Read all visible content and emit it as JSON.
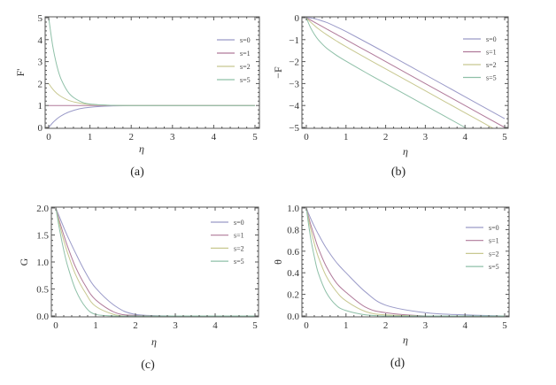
{
  "chart_data": [
    {
      "id": "a",
      "type": "line",
      "panel_label": "(a)",
      "xlabel": "η",
      "ylabel": "F'",
      "xlim": [
        0,
        5
      ],
      "ylim": [
        0,
        5
      ],
      "xticks": [
        "0",
        "1",
        "2",
        "3",
        "4",
        "5"
      ],
      "yticks": [
        "0",
        "1",
        "2",
        "3",
        "4",
        "5"
      ],
      "legend": "top-right",
      "x": [
        0,
        0.1,
        0.2,
        0.3,
        0.5,
        0.75,
        1,
        1.5,
        2,
        3,
        4,
        5
      ],
      "series": [
        {
          "name": "s=0",
          "color": "#9a9ac8",
          "values": [
            0,
            0.22,
            0.39,
            0.53,
            0.71,
            0.85,
            0.92,
            0.98,
            0.99,
            1,
            1,
            1
          ]
        },
        {
          "name": "s=1",
          "color": "#b07a9a",
          "values": [
            1,
            1,
            1,
            1,
            1,
            1,
            1,
            1,
            1,
            1,
            1,
            1
          ]
        },
        {
          "name": "s=2",
          "color": "#c8c890",
          "values": [
            2,
            1.74,
            1.55,
            1.41,
            1.22,
            1.11,
            1.05,
            1.01,
            1,
            1,
            1,
            1
          ]
        },
        {
          "name": "s=5",
          "color": "#8fc0a8",
          "values": [
            5,
            3.68,
            2.8,
            2.2,
            1.54,
            1.2,
            1.07,
            1.01,
            1,
            1,
            1,
            1
          ]
        }
      ]
    },
    {
      "id": "b",
      "type": "line",
      "panel_label": "(b)",
      "xlabel": "η",
      "ylabel": "−F",
      "xlim": [
        0,
        5
      ],
      "ylim": [
        -5,
        0
      ],
      "xticks": [
        "0",
        "1",
        "2",
        "3",
        "4",
        "5"
      ],
      "yticks": [
        "−5",
        "−4",
        "−3",
        "−2",
        "−1",
        "0"
      ],
      "legend": "top-right",
      "x": [
        0,
        0.1,
        0.2,
        0.3,
        0.5,
        0.75,
        1,
        1.5,
        2,
        3,
        4,
        5
      ],
      "series": [
        {
          "name": "s=0",
          "color": "#9a9ac8",
          "values": [
            0,
            -0.01,
            -0.04,
            -0.09,
            -0.21,
            -0.41,
            -0.63,
            -1.11,
            -1.6,
            -2.6,
            -3.6,
            -4.6
          ]
        },
        {
          "name": "s=1",
          "color": "#b07a9a",
          "values": [
            0,
            -0.1,
            -0.2,
            -0.3,
            -0.5,
            -0.75,
            -1,
            -1.5,
            -2,
            -3,
            -4,
            -5
          ]
        },
        {
          "name": "s=2",
          "color": "#c8c890",
          "values": [
            0,
            -0.19,
            -0.35,
            -0.5,
            -0.76,
            -1.05,
            -1.32,
            -1.83,
            -2.33,
            -3.33,
            -4.33,
            -5.33
          ]
        },
        {
          "name": "s=5",
          "color": "#8fc0a8",
          "values": [
            0,
            -0.43,
            -0.75,
            -1.0,
            -1.37,
            -1.7,
            -1.98,
            -2.5,
            -3.0,
            -4.0,
            -5.0,
            -6.0
          ]
        }
      ]
    },
    {
      "id": "c",
      "type": "line",
      "panel_label": "(c)",
      "xlabel": "η",
      "ylabel": "G",
      "xlim": [
        0,
        5
      ],
      "ylim": [
        0,
        2
      ],
      "xticks": [
        "0",
        "1",
        "2",
        "3",
        "4",
        "5"
      ],
      "yticks": [
        "0.0",
        "0.5",
        "1.0",
        "1.5",
        "2.0"
      ],
      "legend": "top-right",
      "x": [
        0,
        0.1,
        0.2,
        0.3,
        0.5,
        0.75,
        1,
        1.5,
        2,
        3,
        4,
        5
      ],
      "series": [
        {
          "name": "s=0",
          "color": "#9a9ac8",
          "values": [
            2,
            1.82,
            1.64,
            1.47,
            1.16,
            0.8,
            0.52,
            0.18,
            0.03,
            0,
            0,
            0
          ]
        },
        {
          "name": "s=1",
          "color": "#b07a9a",
          "values": [
            2,
            1.74,
            1.5,
            1.28,
            0.9,
            0.55,
            0.3,
            0.06,
            0.01,
            0,
            0,
            0
          ]
        },
        {
          "name": "s=2",
          "color": "#c8c890",
          "values": [
            2,
            1.68,
            1.4,
            1.16,
            0.76,
            0.42,
            0.18,
            0.02,
            0,
            0,
            0,
            0
          ]
        },
        {
          "name": "s=5",
          "color": "#8fc0a8",
          "values": [
            2,
            1.58,
            1.22,
            0.92,
            0.48,
            0.16,
            0.03,
            0,
            0,
            0,
            0,
            0
          ]
        }
      ]
    },
    {
      "id": "d",
      "type": "line",
      "panel_label": "(d)",
      "xlabel": "η",
      "ylabel": "θ",
      "xlim": [
        0,
        5
      ],
      "ylim": [
        0,
        1
      ],
      "xticks": [
        "0",
        "1",
        "2",
        "3",
        "4",
        "5"
      ],
      "yticks": [
        "0.0",
        "0.2",
        "0.4",
        "0.6",
        "0.8",
        "1.0"
      ],
      "legend": "top-right",
      "x": [
        0,
        0.1,
        0.2,
        0.3,
        0.5,
        0.75,
        1,
        1.5,
        2,
        3,
        4,
        5
      ],
      "series": [
        {
          "name": "s=0",
          "color": "#9a9ac8",
          "values": [
            1,
            0.91,
            0.83,
            0.76,
            0.63,
            0.5,
            0.4,
            0.22,
            0.1,
            0.03,
            0.01,
            0
          ]
        },
        {
          "name": "s=1",
          "color": "#b07a9a",
          "values": [
            1,
            0.86,
            0.74,
            0.63,
            0.46,
            0.31,
            0.22,
            0.08,
            0.03,
            0,
            0,
            0
          ]
        },
        {
          "name": "s=2",
          "color": "#c8c890",
          "values": [
            1,
            0.82,
            0.67,
            0.55,
            0.37,
            0.23,
            0.14,
            0.04,
            0.01,
            0,
            0,
            0
          ]
        },
        {
          "name": "s=5",
          "color": "#8fc0a8",
          "values": [
            1,
            0.74,
            0.55,
            0.4,
            0.22,
            0.1,
            0.05,
            0.01,
            0,
            0,
            0,
            0
          ]
        }
      ]
    }
  ]
}
